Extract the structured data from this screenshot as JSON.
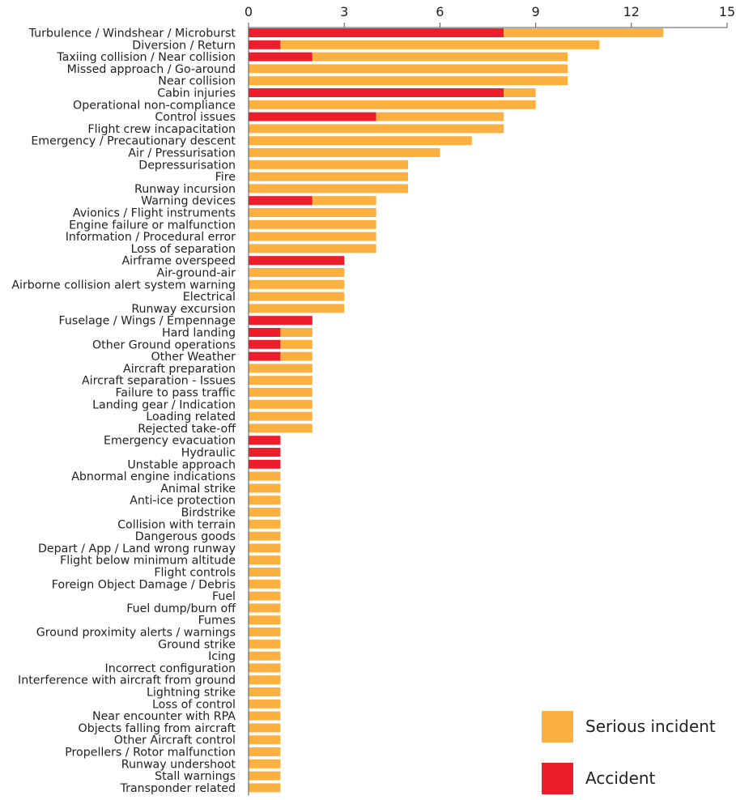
{
  "chart_data": {
    "type": "bar",
    "orientation": "horizontal",
    "stacked": true,
    "xlim": [
      0,
      15
    ],
    "xticks": [
      0,
      3,
      6,
      9,
      12,
      15
    ],
    "grid": false,
    "legend_position": "bottom-right",
    "categories": [
      "Turbulence / Windshear / Microburst",
      "Diversion / Return",
      "Taxiing collision / Near collision",
      "Missed approach / Go-around",
      "Near collision",
      "Cabin injuries",
      "Operational non-compliance",
      "Control issues",
      "Flight crew incapacitation",
      "Emergency / Precautionary descent",
      "Air / Pressurisation",
      "Depressurisation",
      "Fire",
      "Runway incursion",
      "Warning devices",
      "Avionics / Flight instruments",
      "Engine failure or malfunction",
      "Information / Procedural error",
      "Loss of separation",
      "Airframe overspeed",
      "Air-ground-air",
      "Airborne collision alert system warning",
      "Electrical",
      "Runway excursion",
      "Fuselage / Wings / Empennage",
      "Hard landing",
      "Other Ground operations",
      "Other Weather",
      "Aircraft preparation",
      "Aircraft separation - Issues",
      "Failure to pass traffic",
      "Landing gear / Indication",
      "Loading related",
      "Rejected take-off",
      "Emergency evacuation",
      "Hydraulic",
      "Unstable approach",
      "Abnormal engine indications",
      "Animal strike",
      "Anti-ice protection",
      "Birdstrike",
      "Collision with terrain",
      "Dangerous goods",
      "Depart / App / Land wrong runway",
      "Flight below minimum altitude",
      "Flight controls",
      "Foreign Object Damage / Debris",
      "Fuel",
      "Fuel dump/burn off",
      "Fumes",
      "Ground proximity alerts / warnings",
      "Ground strike",
      "Icing",
      "Incorrect configuration",
      "Interference with aircraft from ground",
      "Lightning strike",
      "Loss of control",
      "Near encounter with RPA",
      "Objects falling from aircraft",
      "Other Aircraft control",
      "Propellers / Rotor malfunction",
      "Runway undershoot",
      "Stall warnings",
      "Transponder related"
    ],
    "series": [
      {
        "name": "Accident",
        "color": "#ee1d2b",
        "values": [
          8,
          1,
          2,
          0,
          0,
          8,
          0,
          4,
          0,
          0,
          0,
          0,
          0,
          0,
          2,
          0,
          0,
          0,
          0,
          3,
          0,
          0,
          0,
          0,
          2,
          1,
          1,
          1,
          0,
          0,
          0,
          0,
          0,
          0,
          1,
          1,
          1,
          0,
          0,
          0,
          0,
          0,
          0,
          0,
          0,
          0,
          0,
          0,
          0,
          0,
          0,
          0,
          0,
          0,
          0,
          0,
          0,
          0,
          0,
          0,
          0,
          0,
          0,
          0
        ]
      },
      {
        "name": "Serious incident",
        "color": "#fbb040",
        "values": [
          5,
          10,
          8,
          10,
          10,
          1,
          9,
          4,
          8,
          7,
          6,
          5,
          5,
          5,
          2,
          4,
          4,
          4,
          4,
          0,
          3,
          3,
          3,
          3,
          0,
          1,
          1,
          1,
          2,
          2,
          2,
          2,
          2,
          2,
          0,
          0,
          0,
          1,
          1,
          1,
          1,
          1,
          1,
          1,
          1,
          1,
          1,
          1,
          1,
          1,
          1,
          1,
          1,
          1,
          1,
          1,
          1,
          1,
          1,
          1,
          1,
          1,
          1,
          1
        ]
      }
    ],
    "legend": [
      {
        "label": "Serious incident",
        "color": "#fbb040"
      },
      {
        "label": "Accident",
        "color": "#ee1d2b"
      }
    ]
  }
}
